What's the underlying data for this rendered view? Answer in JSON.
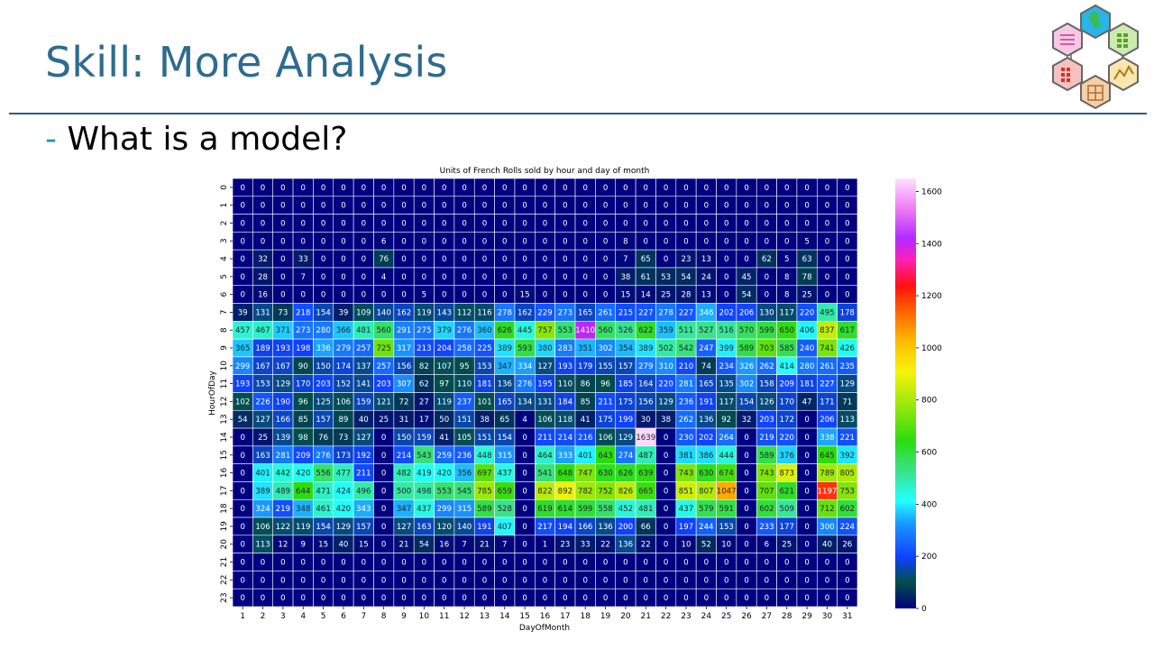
{
  "slide": {
    "title": "Skill: More Analysis",
    "bullet_dash": "-",
    "bullet_text": "What is a model?"
  },
  "logo": {
    "icon": "hexagon-cluster-logo"
  },
  "chart_data": {
    "type": "heatmap",
    "title": "Units of French Rolls sold by hour and day of month",
    "xlabel": "DayOfMonth",
    "ylabel": "HourOfDay",
    "x": [
      "1",
      "2",
      "3",
      "4",
      "5",
      "6",
      "7",
      "8",
      "9",
      "10",
      "11",
      "12",
      "13",
      "14",
      "15",
      "16",
      "17",
      "18",
      "19",
      "20",
      "21",
      "22",
      "23",
      "24",
      "25",
      "26",
      "27",
      "28",
      "29",
      "30",
      "31"
    ],
    "y": [
      "0",
      "1",
      "2",
      "3",
      "4",
      "5",
      "6",
      "7",
      "8",
      "9",
      "10",
      "11",
      "12",
      "13",
      "14",
      "15",
      "16",
      "17",
      "18",
      "19",
      "20",
      "21",
      "22",
      "23"
    ],
    "values": [
      [
        0,
        0,
        0,
        0,
        0,
        0,
        0,
        0,
        0,
        0,
        0,
        0,
        0,
        0,
        0,
        0,
        0,
        0,
        0,
        0,
        0,
        0,
        0,
        0,
        0,
        0,
        0,
        0,
        0,
        0,
        0
      ],
      [
        0,
        0,
        0,
        0,
        0,
        0,
        0,
        0,
        0,
        0,
        0,
        0,
        0,
        0,
        0,
        0,
        0,
        0,
        0,
        0,
        0,
        0,
        0,
        0,
        0,
        0,
        0,
        0,
        0,
        0,
        0
      ],
      [
        0,
        0,
        0,
        0,
        0,
        0,
        0,
        0,
        0,
        0,
        0,
        0,
        0,
        0,
        0,
        0,
        0,
        0,
        0,
        0,
        0,
        0,
        0,
        0,
        0,
        0,
        0,
        0,
        0,
        0,
        0
      ],
      [
        0,
        0,
        0,
        0,
        0,
        0,
        0,
        6,
        0,
        0,
        0,
        0,
        0,
        0,
        0,
        0,
        0,
        0,
        0,
        8,
        0,
        0,
        0,
        0,
        0,
        0,
        0,
        0,
        5,
        0,
        0
      ],
      [
        0,
        32,
        0,
        33,
        0,
        0,
        0,
        76,
        0,
        0,
        0,
        0,
        0,
        0,
        0,
        0,
        0,
        0,
        0,
        7,
        65,
        0,
        23,
        13,
        0,
        0,
        62,
        5,
        63,
        0,
        0
      ],
      [
        0,
        28,
        0,
        7,
        0,
        0,
        0,
        4,
        0,
        0,
        0,
        0,
        0,
        0,
        0,
        0,
        0,
        0,
        0,
        38,
        61,
        53,
        54,
        24,
        0,
        45,
        0,
        8,
        78,
        0,
        0
      ],
      [
        0,
        16,
        0,
        0,
        0,
        0,
        0,
        0,
        0,
        5,
        0,
        0,
        0,
        0,
        15,
        0,
        0,
        0,
        0,
        15,
        14,
        25,
        28,
        13,
        0,
        54,
        0,
        8,
        25,
        0,
        0
      ],
      [
        39,
        131,
        73,
        218,
        154,
        39,
        109,
        140,
        162,
        119,
        143,
        112,
        116,
        278,
        162,
        229,
        273,
        165,
        261,
        215,
        227,
        278,
        227,
        346,
        202,
        206,
        130,
        117,
        220,
        495,
        178
      ],
      [
        457,
        467,
        371,
        273,
        280,
        366,
        481,
        560,
        291,
        275,
        379,
        276,
        360,
        626,
        445,
        757,
        553,
        1410,
        560,
        526,
        622,
        359,
        511,
        527,
        516,
        570,
        599,
        650,
        406,
        837,
        617
      ],
      [
        365,
        189,
        193,
        198,
        336,
        279,
        257,
        725,
        317,
        213,
        204,
        258,
        225,
        389,
        593,
        380,
        283,
        351,
        302,
        354,
        389,
        502,
        542,
        247,
        399,
        589,
        703,
        585,
        240,
        741,
        426
      ],
      [
        299,
        167,
        167,
        90,
        150,
        174,
        137,
        257,
        156,
        82,
        107,
        95,
        153,
        347,
        334,
        127,
        193,
        179,
        155,
        157,
        279,
        310,
        210,
        74,
        234,
        326,
        262,
        414,
        280,
        261,
        235
      ],
      [
        193,
        153,
        129,
        170,
        203,
        152,
        141,
        203,
        307,
        62,
        97,
        110,
        181,
        136,
        276,
        195,
        110,
        86,
        96,
        185,
        164,
        220,
        281,
        165,
        135,
        302,
        158,
        209,
        181,
        227,
        129
      ],
      [
        102,
        226,
        190,
        96,
        125,
        106,
        159,
        121,
        72,
        27,
        119,
        237,
        101,
        165,
        134,
        131,
        184,
        85,
        211,
        175,
        156,
        129,
        236,
        191,
        117,
        154,
        126,
        170,
        47,
        171,
        71
      ],
      [
        54,
        127,
        166,
        85,
        157,
        89,
        40,
        25,
        31,
        17,
        50,
        151,
        38,
        65,
        4,
        106,
        118,
        41,
        175,
        199,
        30,
        38,
        262,
        136,
        92,
        32,
        203,
        172,
        0,
        206,
        113
      ],
      [
        0,
        25,
        139,
        98,
        76,
        73,
        127,
        0,
        150,
        159,
        41,
        105,
        151,
        154,
        0,
        211,
        214,
        216,
        106,
        129,
        1639,
        0,
        230,
        202,
        264,
        0,
        219,
        220,
        0,
        338,
        221
      ],
      [
        0,
        163,
        281,
        209,
        276,
        173,
        192,
        0,
        214,
        543,
        259,
        236,
        448,
        315,
        0,
        464,
        333,
        401,
        643,
        274,
        487,
        0,
        381,
        386,
        444,
        0,
        589,
        376,
        0,
        645,
        392
      ],
      [
        0,
        401,
        442,
        420,
        556,
        477,
        211,
        0,
        482,
        419,
        420,
        356,
        697,
        437,
        0,
        541,
        648,
        747,
        630,
        626,
        639,
        0,
        743,
        630,
        674,
        0,
        743,
        873,
        0,
        789,
        805
      ],
      [
        0,
        389,
        489,
        644,
        471,
        424,
        496,
        0,
        500,
        498,
        553,
        545,
        785,
        659,
        0,
        822,
        892,
        782,
        752,
        826,
        665,
        0,
        851,
        807,
        1047,
        0,
        707,
        621,
        0,
        1197,
        753
      ],
      [
        0,
        324,
        219,
        348,
        461,
        420,
        343,
        0,
        347,
        437,
        299,
        315,
        589,
        528,
        0,
        619,
        614,
        599,
        558,
        452,
        481,
        0,
        437,
        579,
        591,
        0,
        602,
        509,
        0,
        712,
        602
      ],
      [
        0,
        106,
        122,
        119,
        154,
        129,
        157,
        0,
        127,
        163,
        120,
        140,
        191,
        407,
        0,
        217,
        194,
        166,
        136,
        200,
        66,
        0,
        197,
        244,
        153,
        0,
        233,
        177,
        0,
        300,
        224
      ],
      [
        0,
        113,
        12,
        9,
        15,
        40,
        15,
        0,
        21,
        54,
        16,
        7,
        21,
        7,
        0,
        1,
        23,
        33,
        22,
        136,
        22,
        0,
        10,
        52,
        10,
        0,
        6,
        25,
        0,
        40,
        26
      ],
      [
        0,
        0,
        0,
        0,
        0,
        0,
        0,
        0,
        0,
        0,
        0,
        0,
        0,
        0,
        0,
        0,
        0,
        0,
        0,
        0,
        0,
        0,
        0,
        0,
        0,
        0,
        0,
        0,
        0,
        0,
        0
      ],
      [
        0,
        0,
        0,
        0,
        0,
        0,
        0,
        0,
        0,
        0,
        0,
        0,
        0,
        0,
        0,
        0,
        0,
        0,
        0,
        0,
        0,
        0,
        0,
        0,
        0,
        0,
        0,
        0,
        0,
        0,
        0
      ],
      [
        0,
        0,
        0,
        0,
        0,
        0,
        0,
        0,
        0,
        0,
        0,
        0,
        0,
        0,
        0,
        0,
        0,
        0,
        0,
        0,
        0,
        0,
        0,
        0,
        0,
        0,
        0,
        0,
        0,
        0,
        0
      ]
    ],
    "colormap": "gist_ncar",
    "colorbar": {
      "range": [
        0,
        1650
      ],
      "ticks": [
        0,
        200,
        400,
        600,
        800,
        1000,
        1200,
        1400,
        1600
      ]
    },
    "annotations": "cell values printed in each cell",
    "legend": "none"
  }
}
